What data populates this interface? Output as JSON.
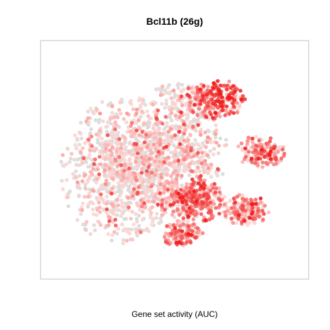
{
  "chart_data": {
    "type": "scatter",
    "title": "Bcl11b (26g)",
    "xlabel": "Gene set activity (AUC)",
    "ylabel": "",
    "grid": false,
    "legend": "none",
    "axes_ticks": false,
    "colors": {
      "low": "#d9d9d9",
      "mid": "#ffd5d2",
      "high": "#ee1c1c",
      "frame": "#c0c0c0"
    },
    "x": [
      0,
      1
    ],
    "y": [
      0,
      1
    ],
    "points_note_generation": "procedural",
    "clusters": [
      {
        "name": "left-body",
        "cx": 0.28,
        "cy": 0.55,
        "rx": 0.23,
        "ry": 0.32,
        "n": 950,
        "activity": 0.18
      },
      {
        "name": "center-body",
        "cx": 0.5,
        "cy": 0.45,
        "rx": 0.2,
        "ry": 0.3,
        "n": 700,
        "activity": 0.25
      },
      {
        "name": "top-right",
        "cx": 0.66,
        "cy": 0.22,
        "rx": 0.12,
        "ry": 0.09,
        "n": 260,
        "activity": 0.62
      },
      {
        "name": "right-mid",
        "cx": 0.85,
        "cy": 0.46,
        "rx": 0.1,
        "ry": 0.07,
        "n": 180,
        "activity": 0.5
      },
      {
        "name": "lower-center",
        "cx": 0.58,
        "cy": 0.69,
        "rx": 0.13,
        "ry": 0.1,
        "n": 320,
        "activity": 0.55
      },
      {
        "name": "lower-right",
        "cx": 0.79,
        "cy": 0.73,
        "rx": 0.09,
        "ry": 0.07,
        "n": 160,
        "activity": 0.48
      },
      {
        "name": "bottom",
        "cx": 0.53,
        "cy": 0.84,
        "rx": 0.08,
        "ry": 0.06,
        "n": 150,
        "activity": 0.5
      }
    ]
  }
}
